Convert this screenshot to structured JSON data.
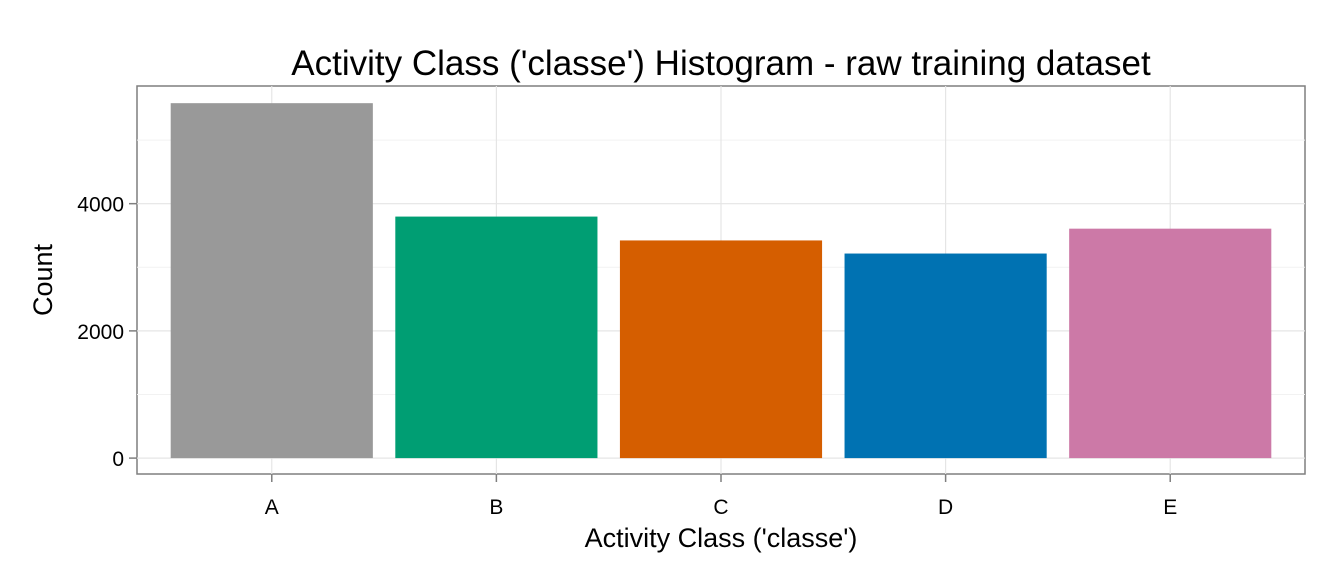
{
  "chart_data": {
    "type": "bar",
    "title": "Activity Class ('classe') Histogram - raw training dataset",
    "xlabel": "Activity Class ('classe')",
    "ylabel": "Count",
    "categories": [
      "A",
      "B",
      "C",
      "D",
      "E"
    ],
    "values": [
      5580,
      3797,
      3422,
      3216,
      3607
    ],
    "colors": [
      "#999999",
      "#009E73",
      "#D55E00",
      "#0072B2",
      "#CC79A7"
    ],
    "ylim": [
      -250,
      5850
    ],
    "yticks": [
      0,
      2000,
      4000
    ],
    "ytick_labels": [
      "0",
      "2000",
      "4000"
    ],
    "grid": true,
    "legend": "none"
  }
}
